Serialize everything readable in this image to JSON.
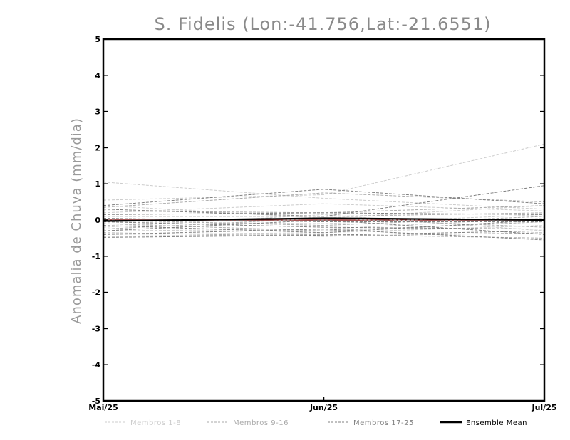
{
  "chart_data": {
    "type": "line",
    "title": "S. Fidelis (Lon:-41.756,Lat:-21.6551)",
    "ylabel": "Anomalia de Chuva (mm/dia)",
    "xlabel": "",
    "x": [
      "Mai/25",
      "Jun/25",
      "Jul/25"
    ],
    "ylim": [
      -5,
      5
    ],
    "yticks": [
      "-5",
      "-4",
      "-3",
      "-2",
      "-1",
      "0",
      "1",
      "2",
      "3",
      "4",
      "5"
    ],
    "grid": false,
    "legend_position": "bottom",
    "groups": [
      {
        "name": "Membros 1-8",
        "color": "#cccccc"
      },
      {
        "name": "Membros 9-16",
        "color": "#aaaaaa"
      },
      {
        "name": "Membros 17-25",
        "color": "#808080"
      },
      {
        "name": "Ensemble Mean",
        "color": "#000000"
      }
    ],
    "series": [
      {
        "group": 0,
        "values": [
          1.05,
          0.6,
          0.3
        ]
      },
      {
        "group": 0,
        "values": [
          0.55,
          0.7,
          2.1
        ]
      },
      {
        "group": 0,
        "values": [
          0.4,
          0.05,
          0.4
        ]
      },
      {
        "group": 0,
        "values": [
          0.2,
          0.45,
          0.25
        ]
      },
      {
        "group": 0,
        "values": [
          -0.05,
          -0.1,
          0.15
        ]
      },
      {
        "group": 0,
        "values": [
          -0.2,
          0.15,
          -0.3
        ]
      },
      {
        "group": 0,
        "values": [
          -0.3,
          -0.25,
          0.05
        ]
      },
      {
        "group": 0,
        "values": [
          -0.4,
          -0.35,
          -0.15
        ]
      },
      {
        "group": 1,
        "values": [
          0.35,
          0.75,
          0.5
        ]
      },
      {
        "group": 1,
        "values": [
          0.25,
          0.2,
          0.4
        ]
      },
      {
        "group": 1,
        "values": [
          0.1,
          0.1,
          0.2
        ]
      },
      {
        "group": 1,
        "values": [
          0.0,
          -0.15,
          0.1
        ]
      },
      {
        "group": 1,
        "values": [
          -0.1,
          -0.3,
          -0.05
        ]
      },
      {
        "group": 1,
        "values": [
          -0.25,
          0.05,
          -0.2
        ]
      },
      {
        "group": 1,
        "values": [
          -0.35,
          -0.45,
          -0.35
        ]
      },
      {
        "group": 1,
        "values": [
          -0.45,
          -0.4,
          -0.5
        ]
      },
      {
        "group": 2,
        "values": [
          0.4,
          0.85,
          0.45
        ]
      },
      {
        "group": 2,
        "values": [
          0.3,
          0.1,
          0.95
        ]
      },
      {
        "group": 2,
        "values": [
          0.15,
          0.2,
          0.15
        ]
      },
      {
        "group": 2,
        "values": [
          0.05,
          -0.05,
          -0.05
        ]
      },
      {
        "group": 2,
        "values": [
          -0.05,
          -0.2,
          -0.25
        ]
      },
      {
        "group": 2,
        "values": [
          -0.15,
          -0.35,
          0.0
        ]
      },
      {
        "group": 2,
        "values": [
          -0.3,
          0.0,
          -0.4
        ]
      },
      {
        "group": 2,
        "values": [
          -0.4,
          -0.25,
          -0.55
        ]
      },
      {
        "group": 2,
        "values": [
          -0.48,
          -0.42,
          -0.3
        ]
      }
    ],
    "mean": {
      "group": 3,
      "values": [
        -0.03,
        0.05,
        0.0
      ],
      "zero_line_color": "#8b1a1a"
    }
  }
}
